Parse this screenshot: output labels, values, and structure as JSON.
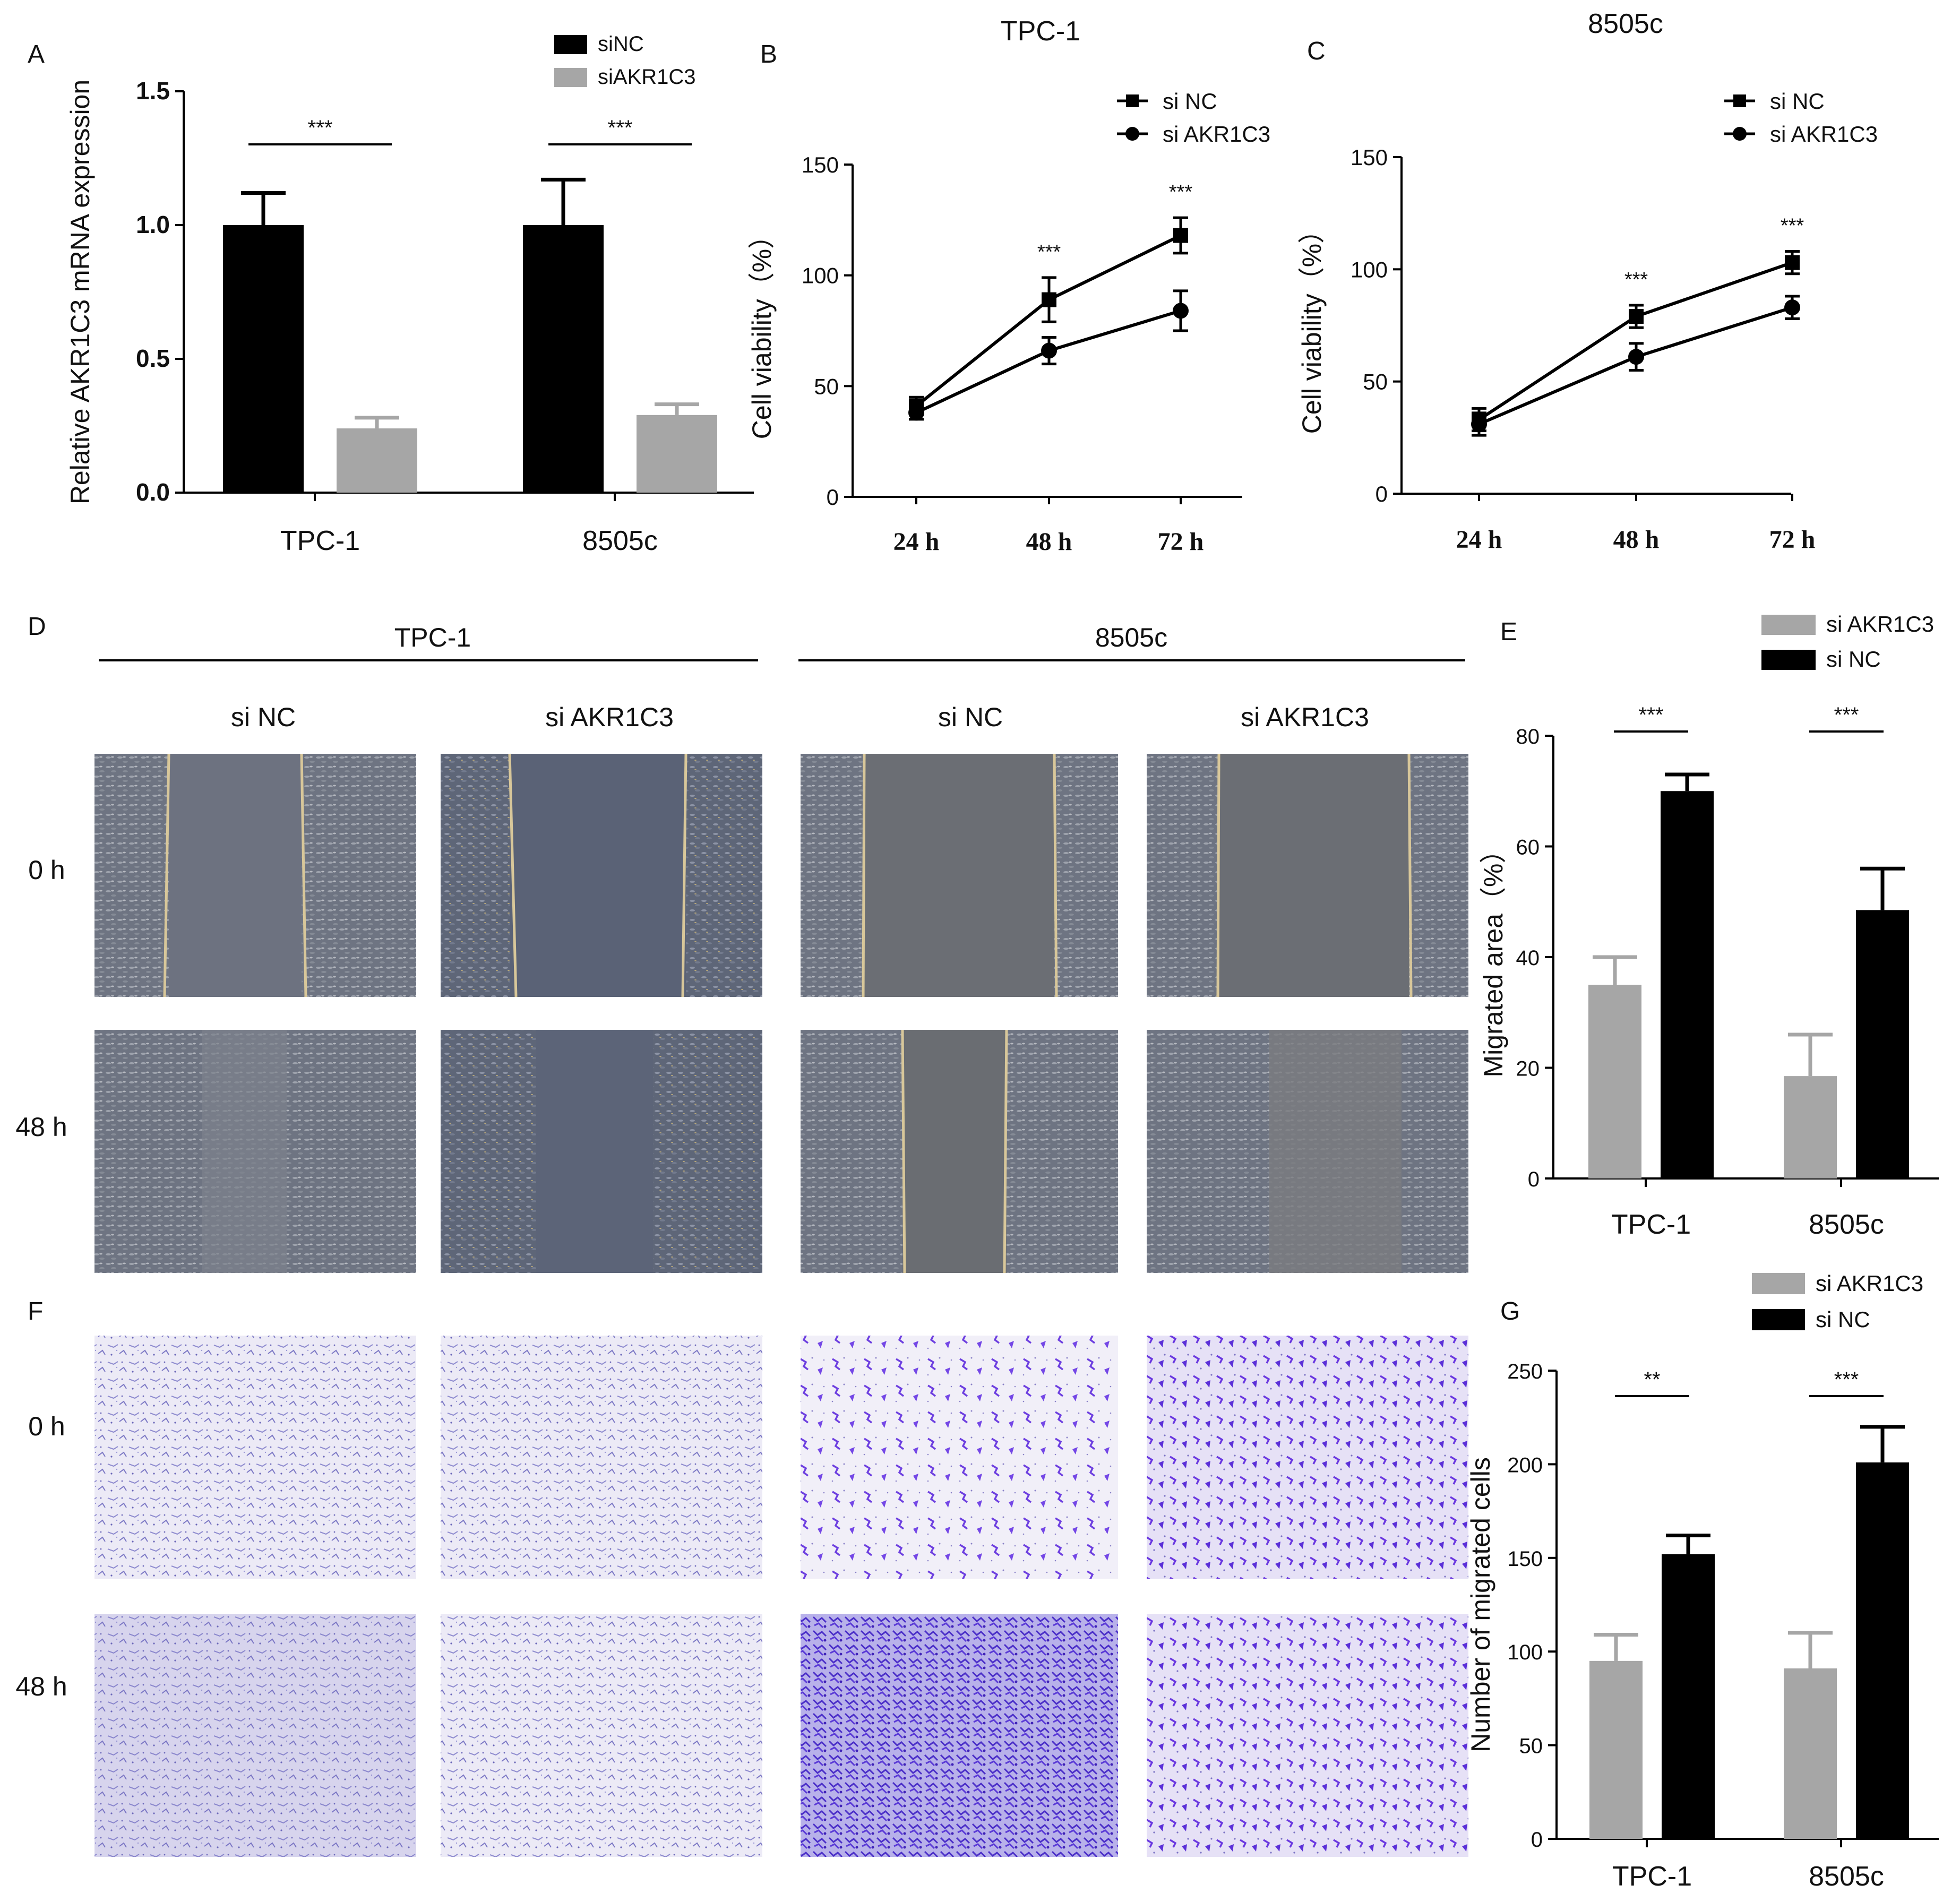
{
  "colors": {
    "si_nc_bar": "#000000",
    "si_akr_bar": "#a6a6a6",
    "axis": "#000000",
    "bg": "#ffffff"
  },
  "panel_labels": {
    "A": "A",
    "B": "B",
    "C": "C",
    "D": "D",
    "E": "E",
    "F": "F",
    "G": "G"
  },
  "chart_data": [
    {
      "panel": "A",
      "type": "bar",
      "title": "",
      "ylabel": "Relative AKR1C3 mRNA expression",
      "xlabel": "",
      "ylim": [
        0,
        1.5
      ],
      "yticks": [
        0.0,
        0.5,
        1.0,
        1.5
      ],
      "ytick_labels": [
        "0.0",
        "0.5",
        "1.0",
        "1.5"
      ],
      "categories": [
        "TPC-1",
        "8505c"
      ],
      "series": [
        {
          "name": "siNC",
          "values": [
            1.0,
            1.0
          ],
          "errors": [
            0.12,
            0.17
          ]
        },
        {
          "name": "siAKR1C3",
          "values": [
            0.24,
            0.29
          ],
          "errors": [
            0.04,
            0.04
          ]
        }
      ],
      "significance": [
        "***",
        "***"
      ],
      "legend": [
        "siNC",
        "siAKR1C3"
      ],
      "legend_position": "top-right"
    },
    {
      "panel": "B",
      "type": "line",
      "title": "TPC-1",
      "ylabel": "Cell viability（%）",
      "xlabel": "",
      "ylim": [
        0,
        150
      ],
      "yticks": [
        0,
        50,
        100,
        150
      ],
      "ytick_labels": [
        "0",
        "50",
        "100",
        "150"
      ],
      "categories": [
        "24 h",
        "48 h",
        "72 h"
      ],
      "series": [
        {
          "name": "si NC",
          "marker": "square",
          "values": [
            41,
            89,
            118
          ],
          "errors": [
            4,
            10,
            8
          ]
        },
        {
          "name": "si AKR1C3",
          "marker": "circle",
          "values": [
            38,
            66,
            84
          ],
          "errors": [
            3,
            6,
            9
          ]
        }
      ],
      "significance": [
        "",
        "***",
        "***"
      ],
      "legend": [
        "si NC",
        "si AKR1C3"
      ],
      "legend_position": "top-right"
    },
    {
      "panel": "C",
      "type": "line",
      "title": "8505c",
      "ylabel": "Cell viability（%）",
      "xlabel": "",
      "ylim": [
        0,
        150
      ],
      "yticks": [
        0,
        50,
        100,
        150
      ],
      "ytick_labels": [
        "0",
        "50",
        "100",
        "150"
      ],
      "categories": [
        "24 h",
        "48 h",
        "72 h"
      ],
      "series": [
        {
          "name": "si NC",
          "marker": "square",
          "values": [
            33,
            79,
            103
          ],
          "errors": [
            5,
            5,
            5
          ]
        },
        {
          "name": "si AKR1C3",
          "marker": "circle",
          "values": [
            31,
            61,
            83
          ],
          "errors": [
            5,
            6,
            5
          ]
        }
      ],
      "significance": [
        "",
        "***",
        "***"
      ],
      "legend": [
        "si NC",
        "si AKR1C3"
      ],
      "legend_position": "top-right"
    },
    {
      "panel": "E",
      "type": "bar",
      "title": "",
      "ylabel": "Migrated area（%）",
      "xlabel": "",
      "ylim": [
        0,
        80
      ],
      "yticks": [
        0,
        20,
        40,
        60,
        80
      ],
      "ytick_labels": [
        "0",
        "20",
        "40",
        "60",
        "80"
      ],
      "categories": [
        "TPC-1",
        "8505c"
      ],
      "series": [
        {
          "name": "si AKR1C3",
          "values": [
            35,
            18.5
          ],
          "errors": [
            5,
            7.5
          ]
        },
        {
          "name": "si NC",
          "values": [
            70,
            48.5
          ],
          "errors": [
            3,
            7.5
          ]
        }
      ],
      "significance": [
        "***",
        "***"
      ],
      "legend": [
        "si AKR1C3",
        "si NC"
      ],
      "legend_position": "top-right"
    },
    {
      "panel": "G",
      "type": "bar",
      "title": "",
      "ylabel": "Number of migrated cells",
      "xlabel": "",
      "ylim": [
        0,
        250
      ],
      "yticks": [
        0,
        50,
        100,
        150,
        200,
        250
      ],
      "ytick_labels": [
        "0",
        "50",
        "100",
        "150",
        "200",
        "250"
      ],
      "categories": [
        "TPC-1",
        "8505c"
      ],
      "series": [
        {
          "name": "si AKR1C3",
          "values": [
            95,
            91
          ],
          "errors": [
            14,
            19
          ]
        },
        {
          "name": "si NC",
          "values": [
            152,
            201
          ],
          "errors": [
            10,
            19
          ]
        }
      ],
      "significance": [
        "**",
        "***"
      ],
      "legend": [
        "si AKR1C3",
        "si NC"
      ],
      "legend_position": "top-right"
    }
  ],
  "panel_D": {
    "group_labels": [
      "TPC-1",
      "8505c"
    ],
    "column_labels": [
      "si NC",
      "si AKR1C3",
      "si NC",
      "si AKR1C3"
    ],
    "row_labels": [
      "0 h",
      "48 h"
    ],
    "image_kind": "wound-healing micrograph"
  },
  "panel_F": {
    "row_labels": [
      "0 h",
      "48 h"
    ],
    "image_kind": "transwell stained micrograph"
  }
}
